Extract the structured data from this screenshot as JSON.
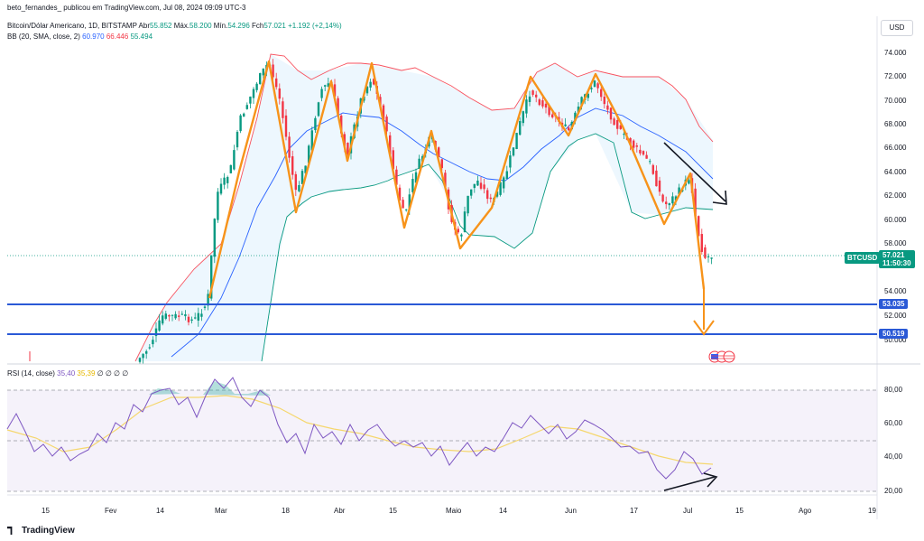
{
  "header": {
    "publisher": "beto_fernandes_ publicou em TradingView.com, Jul 08, 2024 09:09 UTC-3",
    "symbol": "Bitcoin/Dólar Americano, 1D, BITSTAMP",
    "open_label": "Abr",
    "open_value": "55.852",
    "high_label": "Máx.",
    "high_value": "58.200",
    "low_label": "Mín.",
    "low_value": "54.296",
    "close_label": "Fch",
    "close_value": "57.021",
    "change": "+1.192 (+2,14%)",
    "bb_label": "BB (20, SMA, close, 2)",
    "bb_basis": "60.970",
    "bb_upper": "66.446",
    "bb_lower": "55.494",
    "rsi_label": "RSI (14, close)",
    "rsi_value": "35,40",
    "rsi_ma": "35,39",
    "rsi_extras": "∅ ∅ ∅ ∅"
  },
  "currency_button": "USD",
  "price_axis": [
    "74.000",
    "72.000",
    "70.000",
    "68.000",
    "66.000",
    "64.000",
    "62.000",
    "60.000",
    "58.000",
    "54.000",
    "52.000",
    "50.000"
  ],
  "rsi_axis": [
    "80,00",
    "60,00",
    "40,00",
    "20,00"
  ],
  "time_axis": [
    "15",
    "Fev",
    "14",
    "Mar",
    "18",
    "Abr",
    "15",
    "Maio",
    "14",
    "Jun",
    "17",
    "Jul",
    "15",
    "Ago",
    "19"
  ],
  "levels": {
    "upper": "53.035",
    "lower": "50.519"
  },
  "ticker_badge": "BTCUSD",
  "price_badge": {
    "price": "57.021",
    "countdown": "11:50:30"
  },
  "footer_brand": "TradingView",
  "colors": {
    "up": "#089981",
    "down": "#f23645",
    "bb_upper": "#f7525f",
    "bb_basis": "#2962ff",
    "bb_lower": "#089981",
    "bb_fill": "#e3f2fd",
    "zigzag": "#f7931a",
    "level": "#2a59d6",
    "rsi": "#7e57c2",
    "rsi_ma": "#f5d76e"
  }
}
